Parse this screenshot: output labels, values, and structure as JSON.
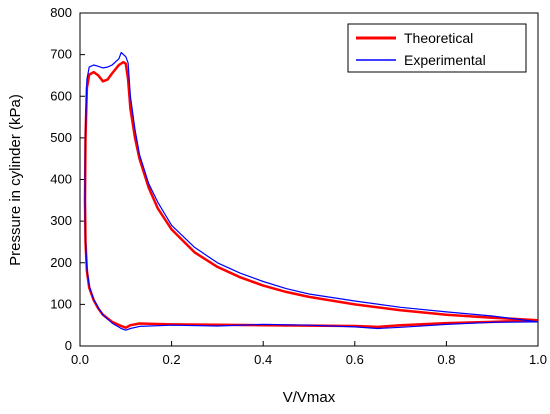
{
  "chart_data": {
    "type": "line",
    "xlabel": "V/Vmax",
    "ylabel": "Pressure in cylinder (kPa)",
    "xlim": [
      0.0,
      1.0
    ],
    "ylim": [
      0,
      800
    ],
    "x_ticks": [
      "0.0",
      "0.2",
      "0.4",
      "0.6",
      "0.8",
      "1.0"
    ],
    "y_ticks": [
      "0",
      "100",
      "200",
      "300",
      "400",
      "500",
      "600",
      "700",
      "800"
    ],
    "grid": false,
    "legend_position": "top-right",
    "series": [
      {
        "name": "Theoretical",
        "color": "#ff0000",
        "points": [
          [
            1.0,
            62
          ],
          [
            0.9,
            68
          ],
          [
            0.8,
            75
          ],
          [
            0.7,
            86
          ],
          [
            0.6,
            100
          ],
          [
            0.5,
            118
          ],
          [
            0.45,
            130
          ],
          [
            0.4,
            145
          ],
          [
            0.35,
            165
          ],
          [
            0.3,
            190
          ],
          [
            0.25,
            225
          ],
          [
            0.2,
            280
          ],
          [
            0.17,
            330
          ],
          [
            0.15,
            380
          ],
          [
            0.13,
            450
          ],
          [
            0.12,
            500
          ],
          [
            0.11,
            570
          ],
          [
            0.105,
            640
          ],
          [
            0.1,
            678
          ],
          [
            0.095,
            682
          ],
          [
            0.085,
            675
          ],
          [
            0.07,
            655
          ],
          [
            0.06,
            640
          ],
          [
            0.05,
            636
          ],
          [
            0.04,
            650
          ],
          [
            0.03,
            658
          ],
          [
            0.02,
            652
          ],
          [
            0.015,
            620
          ],
          [
            0.012,
            500
          ],
          [
            0.011,
            350
          ],
          [
            0.012,
            250
          ],
          [
            0.015,
            180
          ],
          [
            0.02,
            140
          ],
          [
            0.03,
            110
          ],
          [
            0.04,
            90
          ],
          [
            0.05,
            75
          ],
          [
            0.07,
            58
          ],
          [
            0.09,
            48
          ],
          [
            0.1,
            44
          ],
          [
            0.11,
            50
          ],
          [
            0.13,
            54
          ],
          [
            0.2,
            52
          ],
          [
            0.3,
            51
          ],
          [
            0.4,
            50
          ],
          [
            0.5,
            49
          ],
          [
            0.6,
            48
          ],
          [
            0.65,
            46
          ],
          [
            0.7,
            50
          ],
          [
            0.8,
            55
          ],
          [
            0.9,
            58
          ],
          [
            1.0,
            62
          ]
        ]
      },
      {
        "name": "Experimental",
        "color": "#0000ff",
        "points": [
          [
            1.0,
            58
          ],
          [
            0.9,
            72
          ],
          [
            0.8,
            82
          ],
          [
            0.7,
            93
          ],
          [
            0.6,
            108
          ],
          [
            0.5,
            125
          ],
          [
            0.45,
            138
          ],
          [
            0.4,
            155
          ],
          [
            0.35,
            175
          ],
          [
            0.3,
            200
          ],
          [
            0.25,
            237
          ],
          [
            0.2,
            290
          ],
          [
            0.17,
            345
          ],
          [
            0.15,
            390
          ],
          [
            0.13,
            460
          ],
          [
            0.12,
            520
          ],
          [
            0.11,
            600
          ],
          [
            0.105,
            680
          ],
          [
            0.1,
            695
          ],
          [
            0.09,
            705
          ],
          [
            0.085,
            690
          ],
          [
            0.07,
            675
          ],
          [
            0.06,
            670
          ],
          [
            0.05,
            668
          ],
          [
            0.04,
            672
          ],
          [
            0.03,
            675
          ],
          [
            0.02,
            670
          ],
          [
            0.015,
            640
          ],
          [
            0.012,
            520
          ],
          [
            0.011,
            360
          ],
          [
            0.012,
            250
          ],
          [
            0.015,
            185
          ],
          [
            0.02,
            145
          ],
          [
            0.03,
            112
          ],
          [
            0.04,
            92
          ],
          [
            0.05,
            75
          ],
          [
            0.07,
            55
          ],
          [
            0.09,
            42
          ],
          [
            0.1,
            38
          ],
          [
            0.11,
            42
          ],
          [
            0.13,
            47
          ],
          [
            0.2,
            50
          ],
          [
            0.3,
            48
          ],
          [
            0.4,
            52
          ],
          [
            0.5,
            50
          ],
          [
            0.6,
            46
          ],
          [
            0.65,
            42
          ],
          [
            0.7,
            45
          ],
          [
            0.8,
            52
          ],
          [
            0.9,
            57
          ],
          [
            1.0,
            58
          ]
        ]
      }
    ]
  }
}
